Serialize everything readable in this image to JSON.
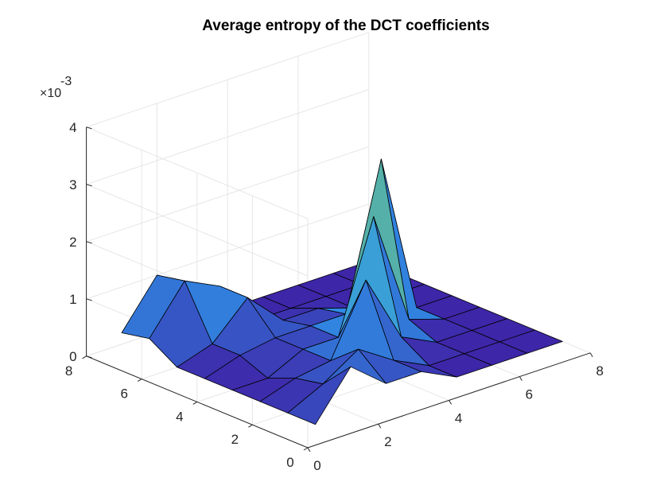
{
  "chart_data": {
    "type": "surface",
    "title": "Average entropy of the DCT coefficients",
    "xlabel": "",
    "ylabel": "",
    "zlabel": "",
    "z_multiplier_label": "×10",
    "z_multiplier_exponent": "-3",
    "xlim": [
      0,
      8
    ],
    "ylim": [
      0,
      8
    ],
    "zlim": [
      0,
      0.004
    ],
    "x_ticks": [
      "0",
      "2",
      "4",
      "6",
      "8"
    ],
    "y_ticks": [
      "0",
      "2",
      "4",
      "6",
      "8"
    ],
    "z_ticks": [
      "0",
      "1",
      "2",
      "3",
      "4"
    ],
    "grid": true,
    "colormap": [
      "#3e26a8",
      "#2e97ec",
      "#7fcb5e",
      "#f9fb0e"
    ],
    "x": [
      1,
      2,
      3,
      4,
      5,
      6,
      7,
      8
    ],
    "y": [
      1,
      2,
      3,
      4,
      5,
      6,
      7,
      8
    ],
    "z": [
      [
        0,
        0.0008,
        0.0003,
        0.0003,
        0,
        0,
        0,
        0
      ],
      [
        0,
        0.0003,
        0.0007,
        0.0003,
        0,
        0,
        0,
        0
      ],
      [
        0,
        0.0002,
        0.0003,
        0.0015,
        0.0003,
        0,
        0,
        0
      ],
      [
        0,
        0,
        0.0003,
        0.0003,
        0.0022,
        0.0002,
        0,
        0
      ],
      [
        0,
        0.0002,
        0.0003,
        0.0003,
        0.0003,
        0.0028,
        0,
        0
      ],
      [
        0,
        0.0002,
        0.0008,
        0.0002,
        0.0002,
        0,
        0,
        0
      ],
      [
        0.0003,
        0.0011,
        0.0008,
        0,
        0,
        0,
        0,
        0
      ],
      [
        0.0002,
        0.001,
        0.0003,
        0,
        0,
        0,
        0,
        0
      ]
    ]
  }
}
